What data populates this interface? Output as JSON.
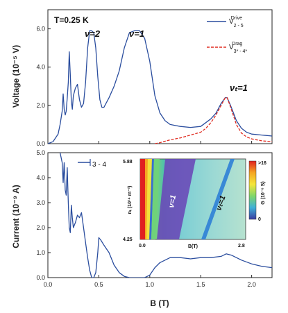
{
  "chart_data": [
    {
      "type": "line",
      "panel": "top",
      "ylabel": "Voltage (10⁻⁵ V)",
      "ylim": [
        0,
        7
      ],
      "xlim": [
        0,
        2.2
      ],
      "yticks": [
        "0.0",
        "2.0",
        "4.0",
        "6.0"
      ],
      "annotation_temperature": "T=0.25 K",
      "annotations": [
        {
          "text": "ν=2",
          "x": 0.42,
          "y": 6.3
        },
        {
          "text": "ν=1",
          "x": 0.9,
          "y": 6.3
        },
        {
          "text": "νₜ=1",
          "x": 1.72,
          "y": 2.9
        }
      ],
      "series": [
        {
          "name": "V₂₋₅ Drive",
          "color": "#2a4d9e",
          "style": "solid",
          "x": [
            0.0,
            0.05,
            0.1,
            0.12,
            0.14,
            0.15,
            0.16,
            0.17,
            0.18,
            0.19,
            0.2,
            0.21,
            0.22,
            0.23,
            0.24,
            0.25,
            0.27,
            0.29,
            0.31,
            0.33,
            0.35,
            0.37,
            0.39,
            0.41,
            0.43,
            0.45,
            0.47,
            0.49,
            0.51,
            0.53,
            0.55,
            0.57,
            0.6,
            0.65,
            0.7,
            0.75,
            0.8,
            0.85,
            0.9,
            0.95,
            1.0,
            1.05,
            1.1,
            1.15,
            1.2,
            1.3,
            1.4,
            1.5,
            1.55,
            1.6,
            1.65,
            1.7,
            1.74,
            1.76,
            1.8,
            1.85,
            1.9,
            1.95,
            2.0,
            2.1,
            2.2
          ],
          "y": [
            0.0,
            0.1,
            0.5,
            1.0,
            1.7,
            2.6,
            1.8,
            1.5,
            1.7,
            2.4,
            3.2,
            4.8,
            3.6,
            2.2,
            1.8,
            2.5,
            2.9,
            3.1,
            2.3,
            1.9,
            2.1,
            3.2,
            5.0,
            5.9,
            5.9,
            5.8,
            5.0,
            3.5,
            2.3,
            1.9,
            1.9,
            2.1,
            2.4,
            3.0,
            3.8,
            5.0,
            5.8,
            5.9,
            5.9,
            5.5,
            4.3,
            2.5,
            1.6,
            1.2,
            1.0,
            0.9,
            0.85,
            0.9,
            1.1,
            1.3,
            1.6,
            2.1,
            2.4,
            2.4,
            1.9,
            1.2,
            0.8,
            0.6,
            0.5,
            0.45,
            0.4
          ]
        },
        {
          "name": "V₃ₖ₋₄ₖ Drag",
          "color": "#e02b20",
          "style": "dashed",
          "x": [
            1.05,
            1.1,
            1.2,
            1.3,
            1.4,
            1.5,
            1.55,
            1.6,
            1.65,
            1.7,
            1.74,
            1.76,
            1.8,
            1.85,
            1.9,
            1.95,
            2.0,
            2.1,
            2.2
          ],
          "y": [
            0.0,
            0.05,
            0.2,
            0.3,
            0.45,
            0.6,
            0.8,
            1.1,
            1.5,
            2.0,
            2.4,
            2.4,
            1.8,
            1.0,
            0.55,
            0.35,
            0.25,
            0.15,
            0.1
          ]
        }
      ]
    },
    {
      "type": "line",
      "panel": "bottom",
      "xlabel": "B (T)",
      "ylabel": "Current (10⁻⁹ A)",
      "ylim": [
        0,
        5
      ],
      "xlim": [
        0,
        2.2
      ],
      "xticks": [
        "0.0",
        "0.5",
        "1.0",
        "1.5",
        "2.0"
      ],
      "yticks": [
        "0.0",
        "1.0",
        "2.0",
        "3.0",
        "4.0",
        "5.0"
      ],
      "legend_label": "3 - 4",
      "series": [
        {
          "name": "I 3-4",
          "color": "#2a4d9e",
          "style": "solid",
          "x": [
            0.12,
            0.14,
            0.15,
            0.16,
            0.17,
            0.18,
            0.19,
            0.2,
            0.21,
            0.22,
            0.23,
            0.24,
            0.25,
            0.27,
            0.29,
            0.31,
            0.33,
            0.35,
            0.37,
            0.39,
            0.41,
            0.43,
            0.45,
            0.47,
            0.49,
            0.5,
            0.52,
            0.55,
            0.6,
            0.65,
            0.7,
            0.75,
            0.8,
            0.83,
            0.85,
            0.87,
            0.9,
            0.95,
            1.0,
            1.05,
            1.1,
            1.2,
            1.3,
            1.4,
            1.5,
            1.6,
            1.7,
            1.75,
            1.8,
            1.9,
            2.0,
            2.1,
            2.2
          ],
          "y": [
            5.0,
            4.6,
            3.8,
            4.6,
            3.5,
            3.3,
            4.4,
            3.0,
            2.0,
            1.8,
            2.9,
            2.4,
            2.0,
            2.2,
            2.5,
            2.4,
            2.6,
            2.0,
            1.4,
            0.8,
            0.3,
            0.0,
            0.0,
            0.2,
            1.0,
            1.6,
            1.5,
            1.3,
            1.0,
            0.5,
            0.2,
            0.05,
            0.0,
            0.0,
            0.0,
            0.0,
            0.0,
            0.0,
            0.1,
            0.4,
            0.6,
            0.8,
            0.8,
            0.75,
            0.8,
            0.8,
            0.85,
            0.95,
            0.9,
            0.7,
            0.55,
            0.45,
            0.4
          ]
        }
      ]
    },
    {
      "type": "heatmap",
      "panel": "inset",
      "xlabel": "B(T)",
      "ylabel": "nₜ (10¹⁴ m⁻²)",
      "xticks": [
        "0.0",
        "2.8"
      ],
      "yticks": [
        "5.88",
        "4.25"
      ],
      "colorbar_label": "G (10⁻⁶ S)",
      "colorbar_ticks": [
        ">16",
        "0"
      ],
      "annotations": [
        "ν=1",
        "νₜ=1"
      ]
    }
  ]
}
